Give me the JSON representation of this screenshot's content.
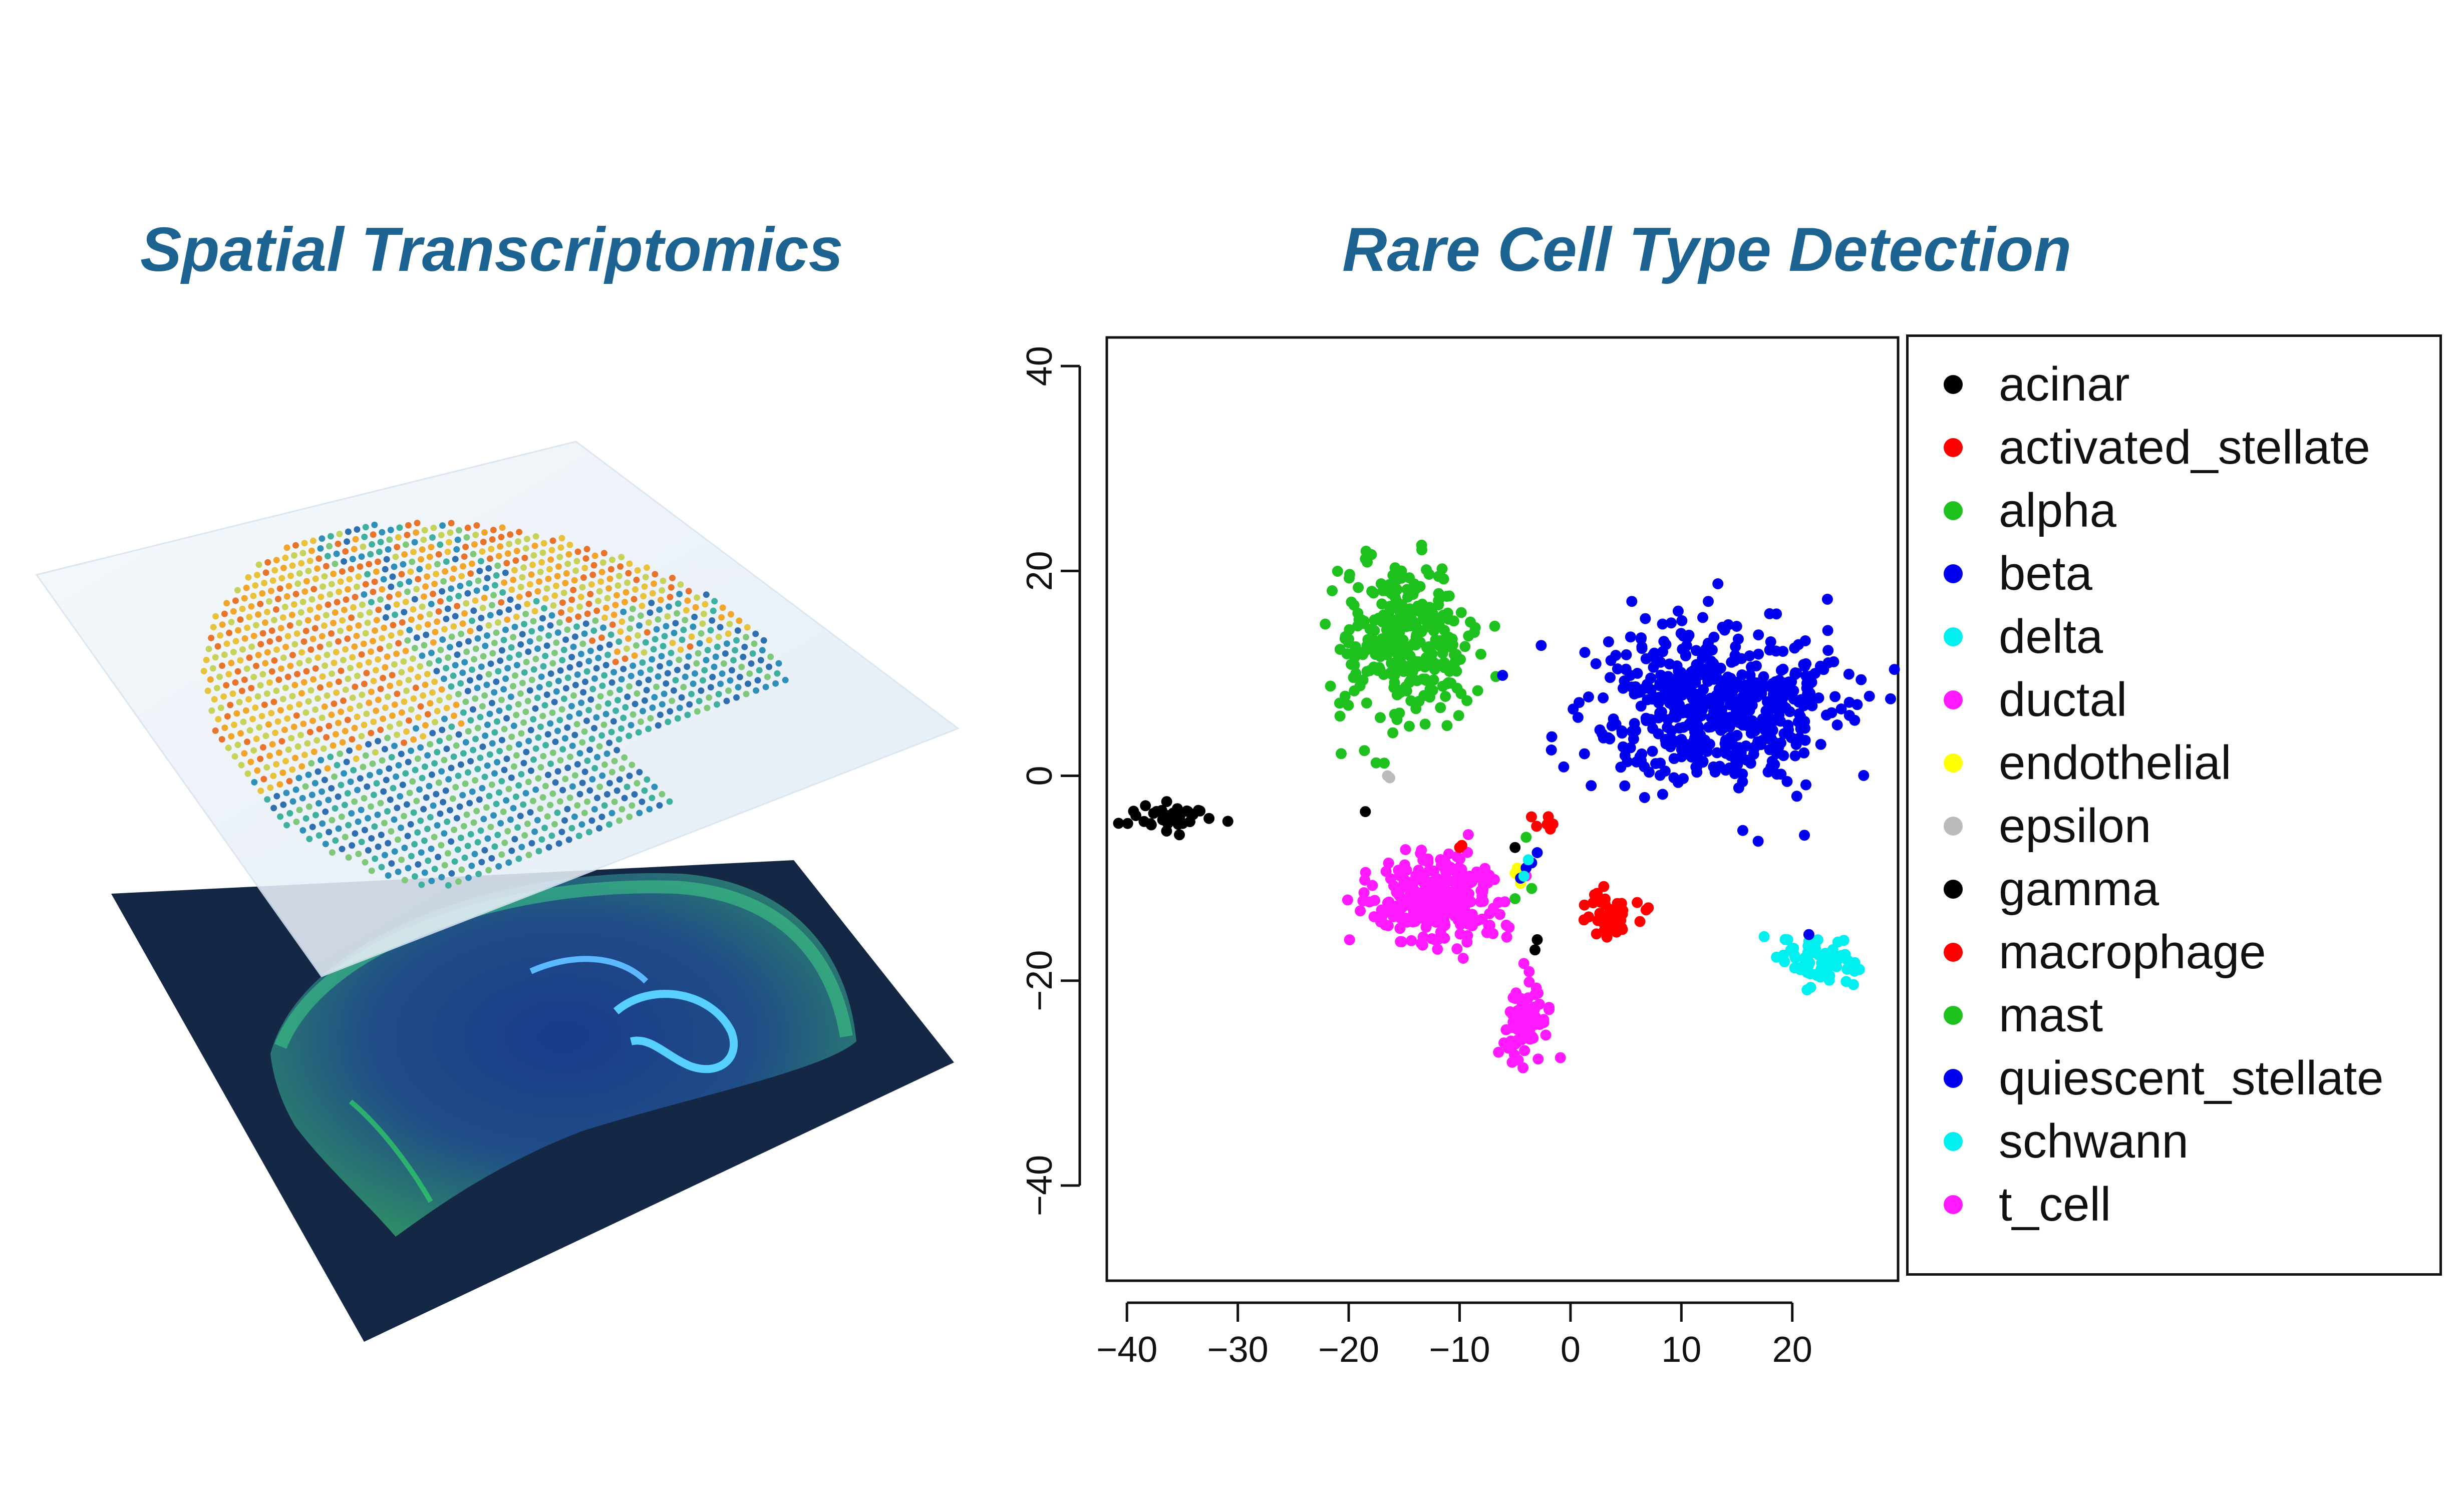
{
  "titles": {
    "left": "Spatial Transcriptomics",
    "right": "Rare Cell Type Detection"
  },
  "colors": {
    "title": "#1c6391",
    "tissue_background": "#142845",
    "overlay_sheet": "#eef4fa"
  },
  "illustration": {
    "subject": "layered spatial transcriptomics spot grid above fluorescence-stained brain tissue section"
  },
  "chart_data": {
    "type": "scatter",
    "title": "Rare Cell Type Detection",
    "xlabel": "",
    "ylabel": "",
    "xlim": [
      -41.5,
      29
    ],
    "ylim": [
      -49,
      42.5
    ],
    "xticks": [
      -40,
      -30,
      -20,
      -10,
      0,
      10,
      20
    ],
    "yticks": [
      -40,
      -20,
      0,
      20,
      40
    ],
    "legend_position": "right",
    "grid": false,
    "series": [
      {
        "name": "acinar",
        "color": "#000000",
        "clusters": [
          {
            "cx": -36,
            "cy": -4,
            "sx": 1.8,
            "sy": 0.7,
            "n": 40
          }
        ]
      },
      {
        "name": "activated_stellate",
        "color": "#ff0000",
        "clusters": [
          {
            "cx": 3.5,
            "cy": -13.5,
            "sx": 1.4,
            "sy": 1.2,
            "n": 45
          },
          {
            "cx": -2.5,
            "cy": -4.5,
            "sx": 0.8,
            "sy": 0.4,
            "n": 5
          }
        ]
      },
      {
        "name": "alpha",
        "color": "#1ec11e",
        "clusters": [
          {
            "cx": -15,
            "cy": 13,
            "sx": 3.0,
            "sy": 3.8,
            "n": 300
          }
        ]
      },
      {
        "name": "beta",
        "color": "#0000ee",
        "clusters": [
          {
            "cx": 13,
            "cy": 7,
            "sx": 5.5,
            "sy": 4.0,
            "n": 560
          }
        ]
      },
      {
        "name": "delta",
        "color": "#00f0f0",
        "clusters": [
          {
            "cx": 22.5,
            "cy": -18,
            "sx": 1.8,
            "sy": 1.0,
            "n": 80
          }
        ]
      },
      {
        "name": "ductal",
        "color": "#ff1aff",
        "clusters": [
          {
            "cx": -12,
            "cy": -12,
            "sx": 3.0,
            "sy": 2.0,
            "n": 290
          }
        ]
      },
      {
        "name": "endothelial",
        "color": "#ffff00",
        "points": [
          [
            -5,
            -9.5
          ],
          [
            -4.5,
            -10.5
          ],
          [
            -4.8,
            -9
          ]
        ]
      },
      {
        "name": "epsilon",
        "color": "#bbbbbb",
        "points": [
          [
            -16.5,
            0
          ],
          [
            -16.3,
            -0.2
          ]
        ]
      },
      {
        "name": "gamma",
        "color": "#000000",
        "points": [
          [
            -18.5,
            -3.5
          ],
          [
            -5,
            -7
          ],
          [
            -3,
            -16
          ],
          [
            -3.2,
            -17
          ]
        ]
      },
      {
        "name": "macrophage",
        "color": "#ff0000",
        "points": [
          [
            -10,
            -7
          ],
          [
            -9.8,
            -6.8
          ],
          [
            -2,
            -4
          ]
        ]
      },
      {
        "name": "mast",
        "color": "#1ec11e",
        "points": [
          [
            -4,
            -6
          ],
          [
            -3.5,
            -11
          ],
          [
            -5,
            -12
          ]
        ]
      },
      {
        "name": "quiescent_stellate",
        "color": "#0000ee",
        "points": [
          [
            -3.5,
            -8.5
          ],
          [
            -4,
            -9
          ],
          [
            -3,
            -7.5
          ],
          [
            -4.5,
            -10
          ],
          [
            21.5,
            -15.5
          ]
        ]
      },
      {
        "name": "schwann",
        "color": "#00f0f0",
        "points": [
          [
            -4.2,
            -9.8
          ],
          [
            -3.8,
            -8.2
          ]
        ]
      },
      {
        "name": "t_cell",
        "color": "#ff1aff",
        "clusters": [
          {
            "cx": -4,
            "cy": -24,
            "sx": 1.2,
            "sy": 1.7,
            "n": 90
          }
        ]
      }
    ]
  }
}
